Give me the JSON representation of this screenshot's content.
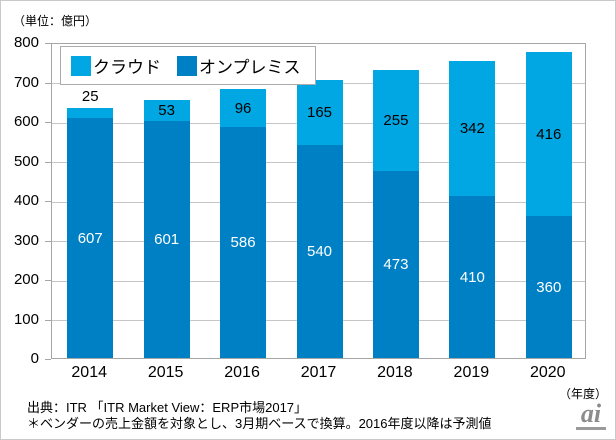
{
  "unit_label": "（単位：億円）",
  "axis_unit_label": "（年度）",
  "footnote": {
    "source": "出典：ITR 「ITR Market View：ERP市場2017」",
    "note": "＊ベンダーの売上金額を対象とし、3月期ベースで換算。2016年度以降は予測値"
  },
  "logo": {
    "text": "ai",
    "color": "#8c8c8c"
  },
  "colors": {
    "cloud": "#00a7e3",
    "onpremise": "#0080c4",
    "gridline": "#c6c6c6",
    "plot_border": "#a6a6a6",
    "frame_border": "#c9c9c9"
  },
  "chart_data": {
    "type": "bar",
    "stacked": true,
    "title": "",
    "xlabel": "（年度）",
    "ylabel": "（単位：億円）",
    "categories": [
      "2014",
      "2015",
      "2016",
      "2017",
      "2018",
      "2019",
      "2020"
    ],
    "series": [
      {
        "name": "クラウド",
        "color": "#00a7e3",
        "values": [
          25,
          53,
          96,
          165,
          255,
          342,
          416
        ]
      },
      {
        "name": "オンプレミス",
        "color": "#0080c4",
        "values": [
          607,
          601,
          586,
          540,
          473,
          410,
          360
        ]
      }
    ],
    "totals": [
      632,
      654,
      682,
      705,
      728,
      752,
      776
    ],
    "ylim": [
      0,
      800
    ],
    "y_ticks": [
      0,
      100,
      200,
      300,
      400,
      500,
      600,
      700,
      800
    ],
    "grid": true,
    "legend_position": "top-left"
  }
}
